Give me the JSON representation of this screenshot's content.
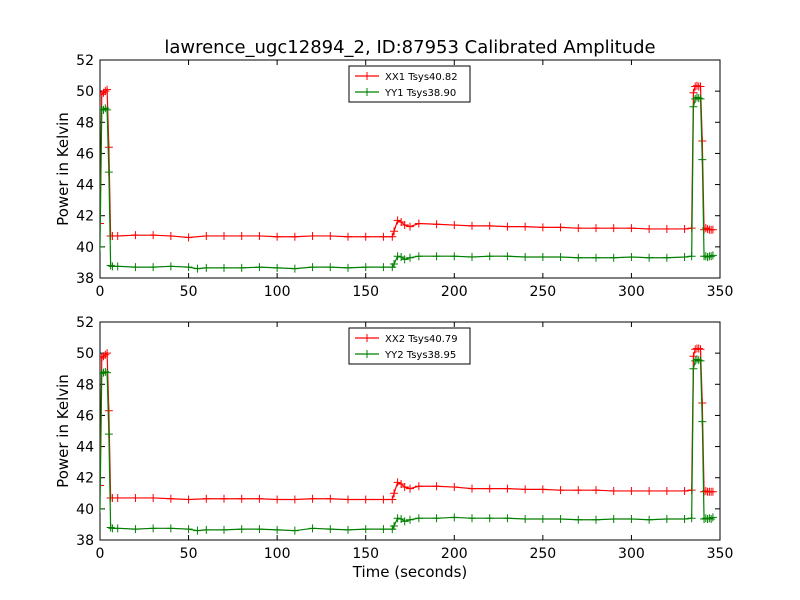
{
  "figure": {
    "title": "lawrence_ugc12894_2, ID:87953 Calibrated Amplitude",
    "xlabel": "Time (seconds)"
  },
  "colors": {
    "xx": "#ff0000",
    "yy": "#008000",
    "axes": "#000000"
  },
  "chart_data": [
    {
      "type": "line",
      "ylabel": "Power in Kelvin",
      "xlim": [
        0,
        350
      ],
      "ylim": [
        38,
        52
      ],
      "xticks": [
        0,
        50,
        100,
        150,
        200,
        250,
        300,
        350
      ],
      "yticks": [
        38,
        40,
        42,
        44,
        46,
        48,
        50,
        52
      ],
      "grid": false,
      "legend_position": "top-center",
      "series": [
        {
          "name": "XX1 Tsys40.82",
          "color": "#ff0000",
          "marker": "+",
          "x": [
            0,
            1,
            2,
            3,
            4,
            5,
            6,
            7,
            10,
            20,
            30,
            40,
            50,
            60,
            70,
            80,
            90,
            100,
            110,
            120,
            130,
            140,
            150,
            160,
            165,
            166,
            168,
            170,
            172,
            175,
            180,
            190,
            200,
            210,
            220,
            230,
            240,
            250,
            260,
            270,
            280,
            290,
            300,
            310,
            320,
            330,
            334,
            335,
            336,
            337,
            338,
            339,
            340,
            341,
            342,
            343,
            344,
            345,
            346
          ],
          "y": [
            41.5,
            49.8,
            49.9,
            50.0,
            50.1,
            46.4,
            40.7,
            40.7,
            40.7,
            40.75,
            40.75,
            40.7,
            40.6,
            40.7,
            40.7,
            40.7,
            40.7,
            40.65,
            40.65,
            40.7,
            40.7,
            40.65,
            40.65,
            40.65,
            40.65,
            41.0,
            41.7,
            41.6,
            41.4,
            41.3,
            41.5,
            41.45,
            41.4,
            41.35,
            41.35,
            41.3,
            41.3,
            41.25,
            41.25,
            41.2,
            41.2,
            41.2,
            41.2,
            41.15,
            41.15,
            41.15,
            41.2,
            49.9,
            50.3,
            50.35,
            50.3,
            50.3,
            46.8,
            41.1,
            41.2,
            41.15,
            41.1,
            41.1,
            41.1
          ]
        },
        {
          "name": "YY1 Tsys38.90",
          "color": "#008000",
          "marker": "+",
          "x": [
            0,
            1,
            2,
            3,
            4,
            5,
            6,
            7,
            10,
            20,
            30,
            40,
            50,
            55,
            60,
            70,
            80,
            90,
            100,
            110,
            120,
            130,
            140,
            150,
            160,
            165,
            166,
            168,
            170,
            172,
            175,
            180,
            190,
            200,
            210,
            220,
            230,
            240,
            250,
            260,
            270,
            280,
            290,
            300,
            310,
            320,
            330,
            334,
            335,
            336,
            337,
            338,
            339,
            340,
            341,
            342,
            343,
            344,
            345,
            346
          ],
          "y": [
            40.0,
            48.8,
            48.8,
            48.9,
            48.8,
            44.8,
            38.8,
            38.75,
            38.75,
            38.7,
            38.7,
            38.75,
            38.7,
            38.6,
            38.65,
            38.65,
            38.65,
            38.7,
            38.65,
            38.6,
            38.7,
            38.7,
            38.65,
            38.7,
            38.7,
            38.7,
            38.9,
            39.4,
            39.35,
            39.2,
            39.3,
            39.4,
            39.4,
            39.4,
            39.35,
            39.4,
            39.4,
            39.35,
            39.35,
            39.35,
            39.3,
            39.3,
            39.3,
            39.35,
            39.3,
            39.3,
            39.35,
            39.4,
            49.0,
            49.5,
            49.6,
            49.55,
            49.5,
            45.6,
            39.4,
            39.4,
            39.35,
            39.4,
            39.4,
            39.45
          ]
        }
      ]
    },
    {
      "type": "line",
      "ylabel": "Power in Kelvin",
      "xlim": [
        0,
        350
      ],
      "ylim": [
        38,
        52
      ],
      "xticks": [
        0,
        50,
        100,
        150,
        200,
        250,
        300,
        350
      ],
      "yticks": [
        38,
        40,
        42,
        44,
        46,
        48,
        50,
        52
      ],
      "grid": false,
      "legend_position": "top-center",
      "series": [
        {
          "name": "XX2 Tsys40.79",
          "color": "#ff0000",
          "marker": "+",
          "x": [
            0,
            1,
            2,
            3,
            4,
            5,
            6,
            7,
            10,
            20,
            30,
            40,
            50,
            60,
            70,
            80,
            90,
            100,
            110,
            120,
            130,
            140,
            150,
            160,
            165,
            166,
            168,
            170,
            172,
            175,
            180,
            190,
            200,
            210,
            220,
            230,
            240,
            250,
            260,
            270,
            280,
            290,
            300,
            310,
            320,
            330,
            334,
            335,
            336,
            337,
            338,
            339,
            340,
            341,
            342,
            343,
            344,
            345,
            346
          ],
          "y": [
            41.5,
            49.7,
            49.8,
            49.9,
            50.0,
            46.3,
            40.7,
            40.7,
            40.7,
            40.7,
            40.7,
            40.65,
            40.6,
            40.65,
            40.65,
            40.65,
            40.65,
            40.6,
            40.6,
            40.65,
            40.65,
            40.6,
            40.6,
            40.6,
            40.6,
            41.0,
            41.7,
            41.6,
            41.4,
            41.3,
            41.45,
            41.45,
            41.4,
            41.3,
            41.3,
            41.3,
            41.25,
            41.25,
            41.2,
            41.2,
            41.2,
            41.15,
            41.15,
            41.15,
            41.15,
            41.15,
            41.2,
            49.8,
            50.25,
            50.3,
            50.3,
            50.25,
            46.8,
            41.1,
            41.15,
            41.1,
            41.1,
            41.1,
            41.1
          ]
        },
        {
          "name": "YY2 Tsys38.95",
          "color": "#008000",
          "marker": "+",
          "x": [
            0,
            1,
            2,
            3,
            4,
            5,
            6,
            7,
            10,
            20,
            30,
            40,
            50,
            55,
            60,
            70,
            80,
            90,
            100,
            110,
            120,
            130,
            140,
            150,
            160,
            165,
            166,
            168,
            170,
            172,
            175,
            180,
            190,
            200,
            210,
            220,
            230,
            240,
            250,
            260,
            270,
            280,
            290,
            300,
            310,
            320,
            330,
            334,
            335,
            336,
            337,
            338,
            339,
            340,
            341,
            342,
            343,
            344,
            345,
            346
          ],
          "y": [
            40.0,
            48.7,
            48.75,
            48.8,
            48.75,
            44.8,
            38.8,
            38.75,
            38.75,
            38.7,
            38.75,
            38.75,
            38.7,
            38.6,
            38.65,
            38.65,
            38.7,
            38.7,
            38.65,
            38.6,
            38.75,
            38.7,
            38.65,
            38.7,
            38.7,
            38.7,
            38.9,
            39.4,
            39.35,
            39.2,
            39.3,
            39.4,
            39.4,
            39.45,
            39.4,
            39.4,
            39.4,
            39.35,
            39.35,
            39.35,
            39.3,
            39.3,
            39.35,
            39.35,
            39.3,
            39.35,
            39.35,
            39.4,
            49.0,
            49.5,
            49.6,
            49.55,
            49.5,
            45.6,
            39.35,
            39.4,
            39.35,
            39.4,
            39.35,
            39.45
          ]
        }
      ]
    }
  ]
}
